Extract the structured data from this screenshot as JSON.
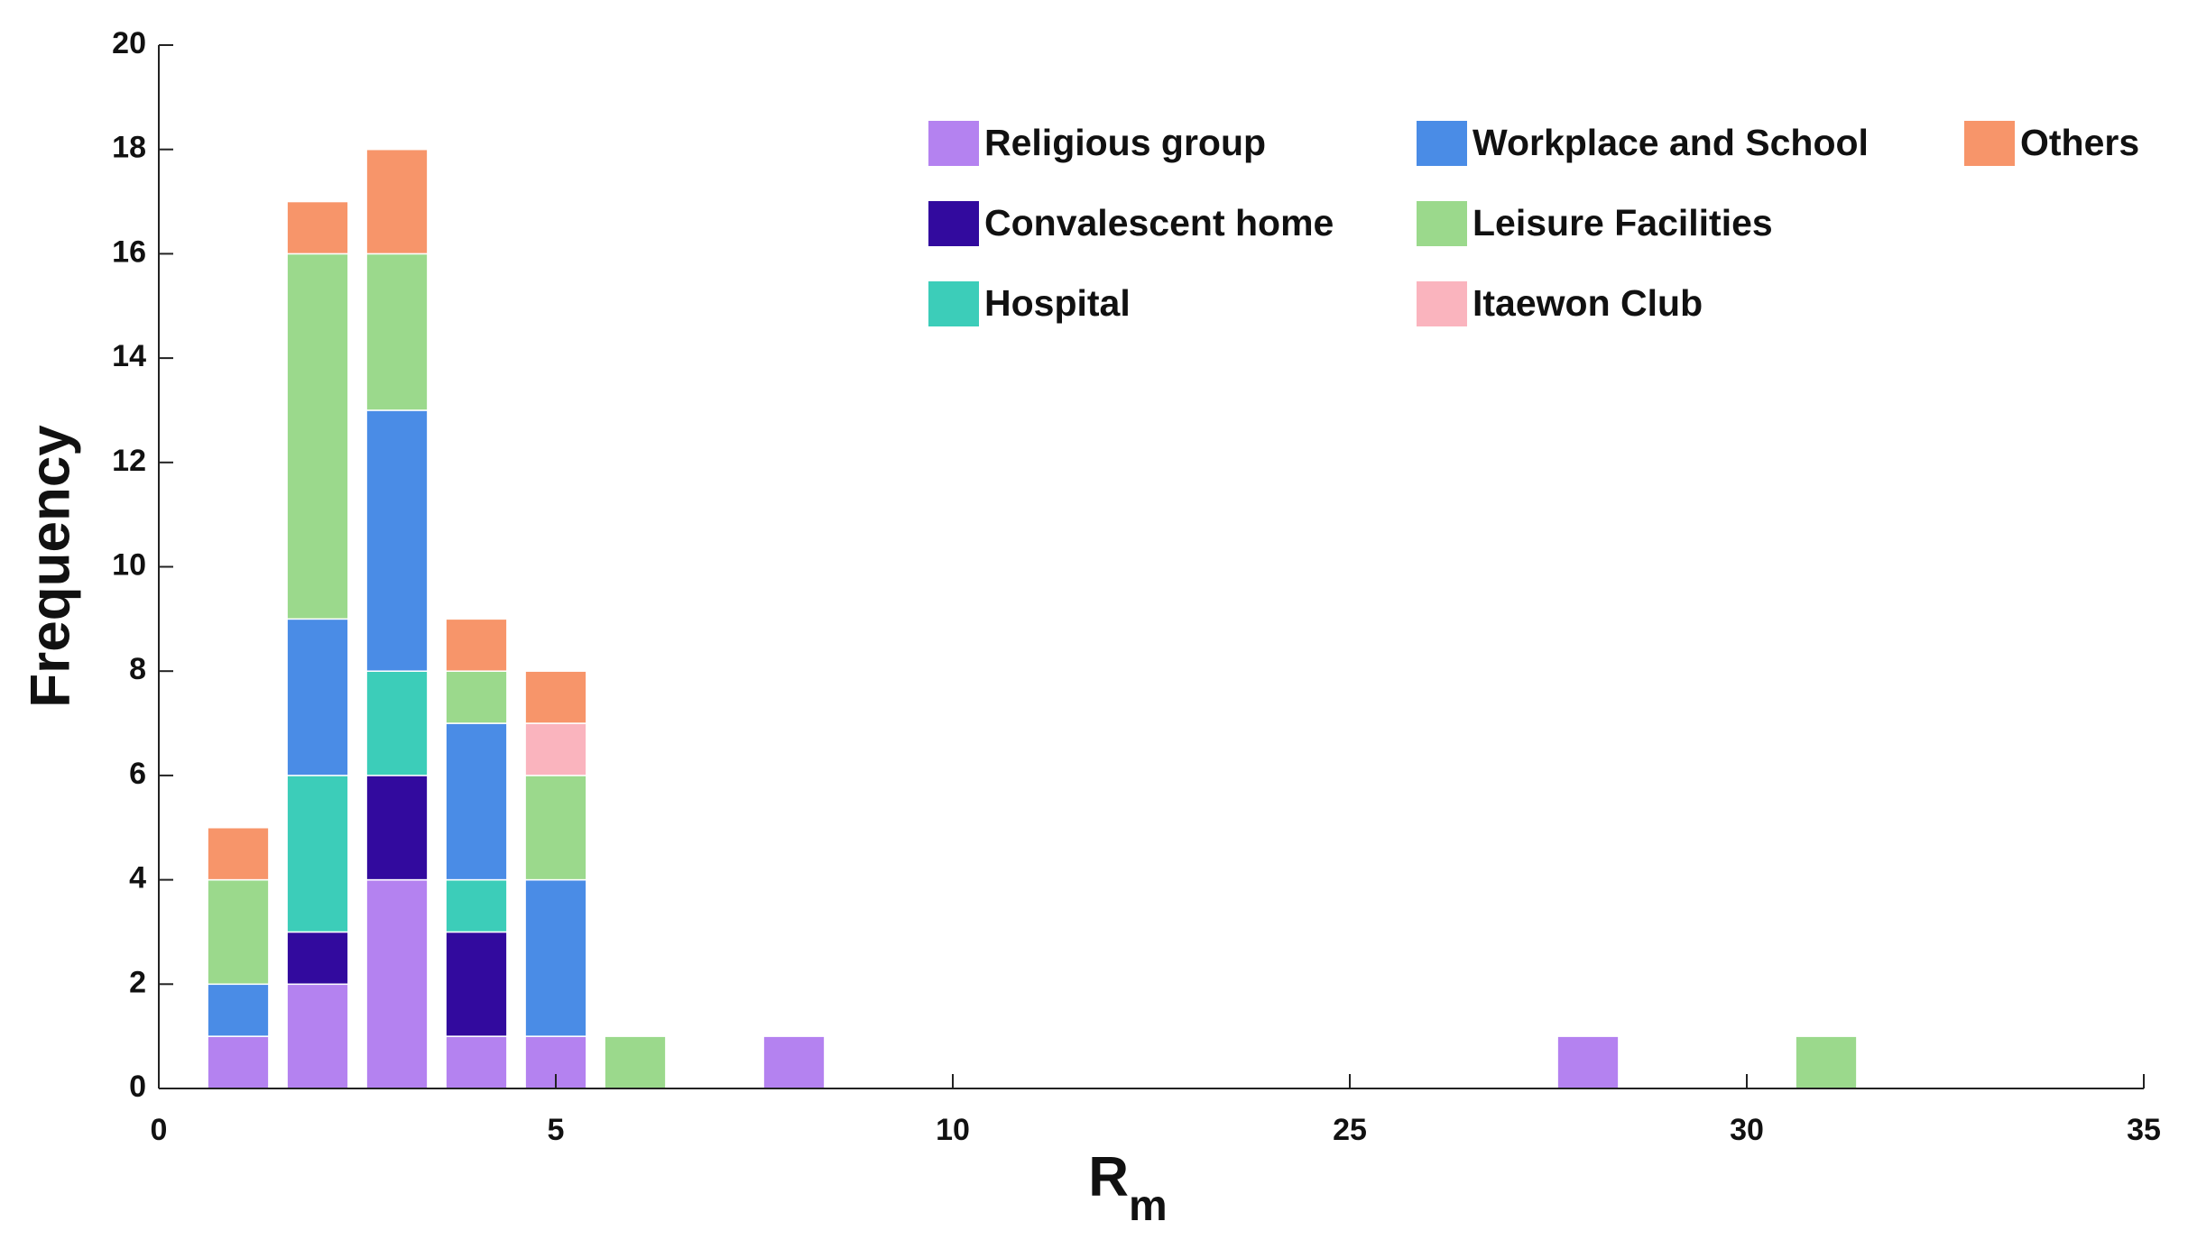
{
  "chart_data": {
    "type": "stacked-bar",
    "ylabel": "Frequency",
    "xlabel": "R",
    "xlabel_subscript": "m",
    "x": [
      1,
      2,
      3,
      4,
      5,
      6,
      8,
      28,
      31
    ],
    "series": [
      {
        "name": "Religious group",
        "color": "#b482f0",
        "values": [
          1,
          2,
          4,
          1,
          1,
          0,
          1,
          1,
          0
        ]
      },
      {
        "name": "Convalescent home",
        "color": "#320a9e",
        "values": [
          0,
          1,
          2,
          2,
          0,
          0,
          0,
          0,
          0
        ]
      },
      {
        "name": "Hospital",
        "color": "#3ccdb9",
        "values": [
          0,
          3,
          2,
          1,
          0,
          0,
          0,
          0,
          0
        ]
      },
      {
        "name": "Workplace and School",
        "color": "#4a8ce6",
        "values": [
          1,
          3,
          5,
          3,
          3,
          0,
          0,
          0,
          0
        ]
      },
      {
        "name": "Leisure Facilities",
        "color": "#9bd98c",
        "values": [
          2,
          7,
          3,
          1,
          2,
          1,
          0,
          0,
          1
        ]
      },
      {
        "name": "Itaewon Club",
        "color": "#fab4be",
        "values": [
          0,
          0,
          0,
          0,
          1,
          0,
          0,
          0,
          0
        ]
      },
      {
        "name": "Others",
        "color": "#f7956a",
        "values": [
          1,
          1,
          2,
          1,
          1,
          0,
          0,
          0,
          0
        ]
      }
    ],
    "xlim": [
      0,
      35
    ],
    "xticks": [
      0,
      5,
      10,
      25,
      30,
      35
    ],
    "ylim": [
      0,
      20
    ],
    "yticks": [
      0,
      2,
      4,
      6,
      8,
      10,
      12,
      14,
      16,
      18,
      20
    ],
    "legend": "upper right"
  }
}
